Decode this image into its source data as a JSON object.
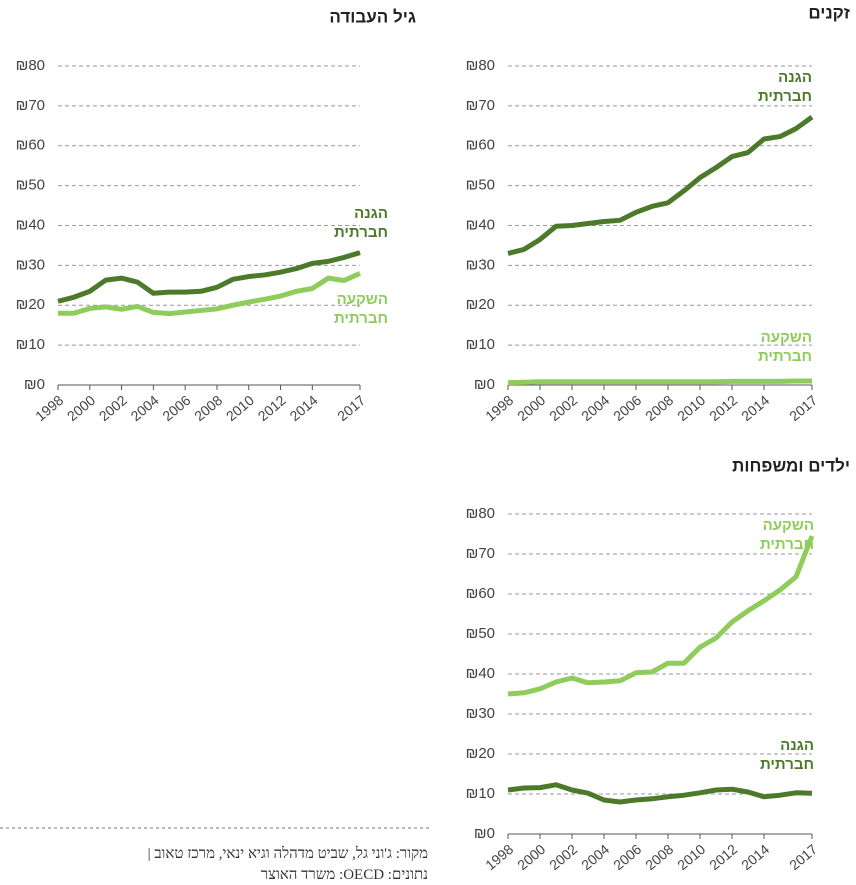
{
  "chart_data": [
    {
      "type": "line",
      "title": "זקנים",
      "x": [
        1998,
        1999,
        2000,
        2001,
        2002,
        2003,
        2004,
        2005,
        2006,
        2007,
        2008,
        2009,
        2010,
        2011,
        2012,
        2013,
        2014,
        2015,
        2016,
        2017
      ],
      "series": [
        {
          "name": "הגנה חברתית",
          "color": "#4c7a2a",
          "values": [
            33,
            34,
            36.5,
            39.8,
            40,
            40.5,
            41,
            41.3,
            43.3,
            44.8,
            45.7,
            48.7,
            52,
            54.5,
            57.3,
            58.3,
            61.7,
            62.3,
            64.3,
            67.2
          ]
        },
        {
          "name": "השקעה חברתית",
          "color": "#8fcc5c",
          "values": [
            0.6,
            0.7,
            0.8,
            0.8,
            0.8,
            0.8,
            0.8,
            0.8,
            0.8,
            0.8,
            0.8,
            0.8,
            0.8,
            0.8,
            0.9,
            0.9,
            0.9,
            0.9,
            1,
            1
          ]
        }
      ],
      "xlim": [
        1998,
        2017
      ],
      "xticks": [
        1998,
        2000,
        2002,
        2004,
        2006,
        2008,
        2010,
        2012,
        2014,
        2017
      ],
      "ylim": [
        0,
        80
      ],
      "yticks": [
        {
          "value": 0,
          "label": "₪0"
        },
        {
          "value": 10,
          "label": "₪10"
        },
        {
          "value": 20,
          "label": "₪20"
        },
        {
          "value": 30,
          "label": "₪30"
        },
        {
          "value": 40,
          "label": "₪40"
        },
        {
          "value": 50,
          "label": "₪50"
        },
        {
          "value": 60,
          "label": "₪60"
        },
        {
          "value": 70,
          "label": "₪70"
        },
        {
          "value": 80,
          "label": "₪80"
        }
      ],
      "grid": true
    },
    {
      "type": "line",
      "title": "גיל העבודה",
      "x": [
        1998,
        1999,
        2000,
        2001,
        2002,
        2003,
        2004,
        2005,
        2006,
        2007,
        2008,
        2009,
        2010,
        2011,
        2012,
        2013,
        2014,
        2015,
        2016,
        2017
      ],
      "series": [
        {
          "name": "הגנה חברתית",
          "color": "#4c7a2a",
          "values": [
            21,
            22,
            23.5,
            26.3,
            26.8,
            25.8,
            23,
            23.3,
            23.3,
            23.5,
            24.5,
            26.5,
            27.2,
            27.6,
            28.3,
            29.2,
            30.5,
            31,
            32,
            33.2
          ]
        },
        {
          "name": "השקעה חברתית",
          "color": "#8fcc5c",
          "values": [
            18,
            18,
            19.2,
            19.6,
            19,
            19.7,
            18.2,
            17.9,
            18.3,
            18.7,
            19.1,
            20,
            20.8,
            21.5,
            22.3,
            23.5,
            24.2,
            26.8,
            26.2,
            28
          ]
        }
      ],
      "xlim": [
        1998,
        2017
      ],
      "xticks": [
        1998,
        2000,
        2002,
        2004,
        2006,
        2008,
        2010,
        2012,
        2014,
        2017
      ],
      "ylim": [
        0,
        80
      ],
      "yticks": [
        {
          "value": 0,
          "label": "₪0"
        },
        {
          "value": 10,
          "label": "₪10"
        },
        {
          "value": 20,
          "label": "₪20"
        },
        {
          "value": 30,
          "label": "₪30"
        },
        {
          "value": 40,
          "label": "₪40"
        },
        {
          "value": 50,
          "label": "₪50"
        },
        {
          "value": 60,
          "label": "₪60"
        },
        {
          "value": 70,
          "label": "₪70"
        },
        {
          "value": 80,
          "label": "₪80"
        }
      ],
      "grid": true
    },
    {
      "type": "line",
      "title": "ילדים ומשפחות",
      "x": [
        1998,
        1999,
        2000,
        2001,
        2002,
        2003,
        2004,
        2005,
        2006,
        2007,
        2008,
        2009,
        2010,
        2011,
        2012,
        2013,
        2014,
        2015,
        2016,
        2017
      ],
      "series": [
        {
          "name": "השקעה חברתית",
          "color": "#8fcc5c",
          "values": [
            35,
            35.3,
            36.3,
            38,
            39,
            37.8,
            38,
            38.3,
            40.3,
            40.5,
            42.7,
            42.7,
            46.7,
            49,
            53,
            55.8,
            58.3,
            61,
            64.3,
            74.5
          ]
        },
        {
          "name": "הגנה חברתית",
          "color": "#4c7a2a",
          "values": [
            11,
            11.5,
            11.6,
            12.3,
            11,
            10.2,
            8.5,
            8,
            8.5,
            8.8,
            9.3,
            9.7,
            10.3,
            11,
            11.2,
            10.5,
            9.3,
            9.7,
            10.3,
            10.2
          ]
        }
      ],
      "xlim": [
        1998,
        2017
      ],
      "xticks": [
        1998,
        2000,
        2002,
        2004,
        2006,
        2008,
        2010,
        2012,
        2014,
        2017
      ],
      "ylim": [
        0,
        80
      ],
      "yticks": [
        {
          "value": 0,
          "label": "₪0"
        },
        {
          "value": 10,
          "label": "₪10"
        },
        {
          "value": 20,
          "label": "₪20"
        },
        {
          "value": 30,
          "label": "₪30"
        },
        {
          "value": 40,
          "label": "₪40"
        },
        {
          "value": 50,
          "label": "₪50"
        },
        {
          "value": 60,
          "label": "₪60"
        },
        {
          "value": 70,
          "label": "₪70"
        },
        {
          "value": 80,
          "label": "₪80"
        }
      ],
      "grid": true
    }
  ],
  "footer": {
    "source": "מקור: ג'וני גל, שביט מדהלה וגיא ינאי, מרכז טאוב |",
    "data": "נתונים: OECD: משרד האוצר"
  }
}
